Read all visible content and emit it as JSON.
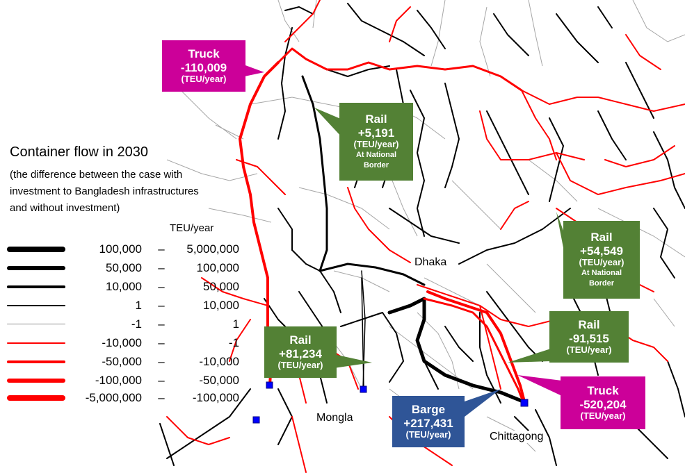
{
  "legend": {
    "title": "Container flow in 2030",
    "subtitle": "(the difference between the case with investment to Bangladesh infrastructures and without investment)",
    "unit": "TEU/year",
    "rows": [
      {
        "from": "100,000",
        "dash": "–",
        "to": "5,000,000"
      },
      {
        "from": "50,000",
        "dash": "–",
        "to": "100,000"
      },
      {
        "from": "10,000",
        "dash": "–",
        "to": "50,000"
      },
      {
        "from": "1",
        "dash": "–",
        "to": "10,000"
      },
      {
        "from": "-1",
        "dash": "–",
        "to": "1"
      },
      {
        "from": "-10,000",
        "dash": "–",
        "to": "-1"
      },
      {
        "from": "-50,000",
        "dash": "–",
        "to": "-10,000"
      },
      {
        "from": "-100,000",
        "dash": "–",
        "to": "-50,000"
      },
      {
        "from": "-5,000,000",
        "dash": "–",
        "to": "-100,000"
      }
    ]
  },
  "cities": {
    "dhaka": "Dhaka",
    "mongla": "Mongla",
    "chittagong": "Chittagong"
  },
  "callouts": {
    "truck_nw": {
      "mode": "Truck",
      "value": "-110,009",
      "unit": "(TEU/year)"
    },
    "rail_north": {
      "mode": "Rail",
      "value": "+5,191",
      "unit": "(TEU/year)",
      "note": "At National Border"
    },
    "rail_east": {
      "mode": "Rail",
      "value": "+54,549",
      "unit": "(TEU/year)",
      "note": "At National Border"
    },
    "rail_west": {
      "mode": "Rail",
      "value": "+81,234",
      "unit": "(TEU/year)"
    },
    "rail_se": {
      "mode": "Rail",
      "value": "-91,515",
      "unit": "(TEU/year)"
    },
    "barge": {
      "mode": "Barge",
      "value": "+217,431",
      "unit": "(TEU/year)"
    },
    "truck_se": {
      "mode": "Truck",
      "value": "-520,204",
      "unit": "(TEU/year)"
    }
  },
  "colors": {
    "positive_flow": "#000000",
    "negative_flow": "#ff0000",
    "minor_flow": "#a6a6a6",
    "truck_box": "#cc0099",
    "rail_box": "#538135",
    "barge_box": "#2f5597",
    "port_marker": "#0000ff"
  }
}
